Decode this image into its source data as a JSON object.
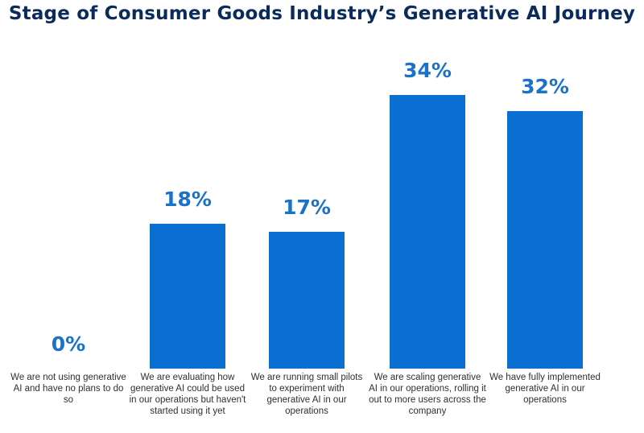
{
  "chart_data": {
    "type": "bar",
    "title": "Stage of Consumer Goods Industry’s Generative AI Journey",
    "categories": [
      "We are not using generative AI and have no plans to do so",
      "We are evaluating how generative AI could be used in our operations but haven't started using it yet",
      "We are running small pilots to experiment with generative AI in our operations",
      "We are scaling generative AI in our operations, rolling it out to more users across the company",
      "We have fully implemented generative AI in our operations"
    ],
    "values": [
      0,
      18,
      17,
      34,
      32
    ],
    "value_labels": [
      "0%",
      "18%",
      "17%",
      "34%",
      "32%"
    ],
    "ylim": [
      0,
      34
    ],
    "xlabel": "",
    "ylabel": "",
    "grid": false,
    "bar_color": "#0a6fd1",
    "label_color": "#1a72c9"
  }
}
